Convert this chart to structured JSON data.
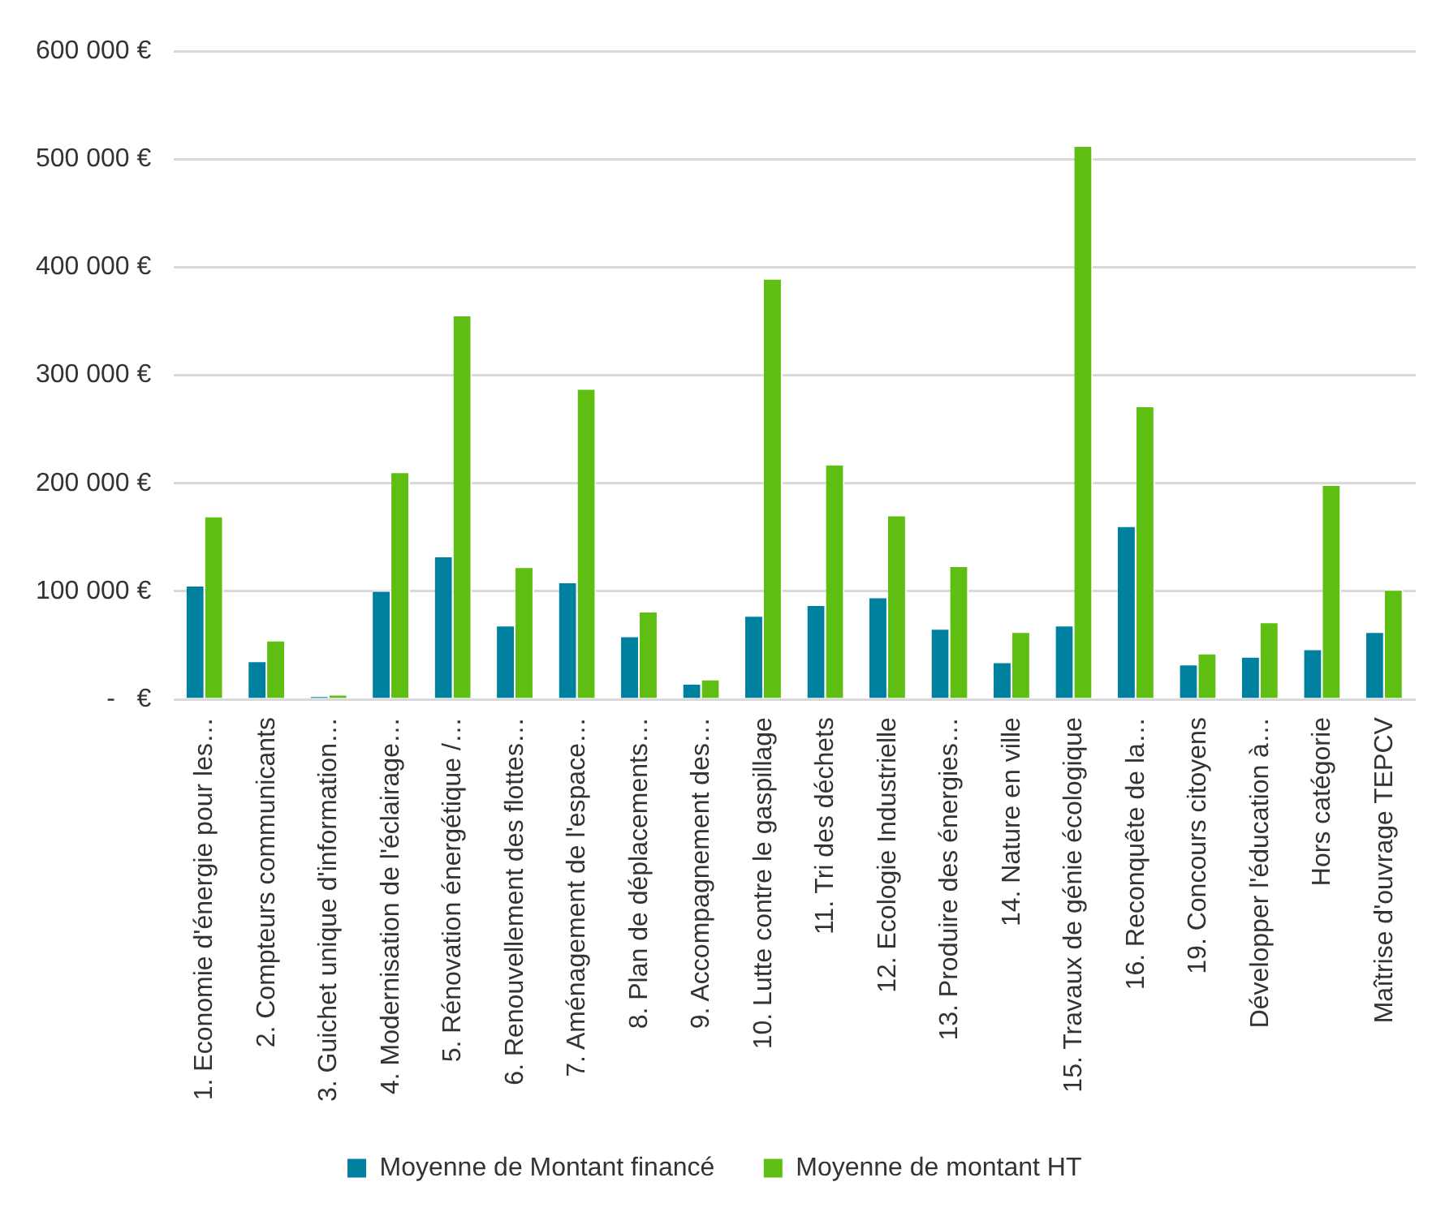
{
  "chart_data": {
    "type": "bar",
    "categories": [
      "1. Economie d'énergie pour les…",
      "2. Compteurs communicants",
      "3. Guichet unique d'information…",
      "4. Modernisation de l'éclairage…",
      "5. Rénovation énergétique /…",
      "6. Renouvellement des flottes…",
      "7. Aménagement de l'espace…",
      "8. Plan de déplacements…",
      "9. Accompagnement des…",
      "10. Lutte contre le gaspillage",
      "11. Tri des déchets",
      "12. Ecologie Industrielle",
      "13. Produire des énergies…",
      "14. Nature en ville",
      "15. Travaux de génie écologique",
      "16. Reconquête de la…",
      "19. Concours citoyens",
      "Développer l'éducation à…",
      "Hors catégorie",
      "Maîtrise d'ouvrage TEPCV"
    ],
    "series": [
      {
        "name": "Moyenne de Montant financé",
        "color": "#00809f",
        "values": [
          106000,
          36000,
          3000,
          101000,
          133000,
          69000,
          109000,
          59000,
          15000,
          78000,
          88000,
          95000,
          66000,
          35000,
          69000,
          161000,
          33000,
          40000,
          47000,
          63000
        ]
      },
      {
        "name": "Moyenne de montant HT",
        "color": "#5fbe12",
        "values": [
          170000,
          55000,
          5000,
          211000,
          356000,
          123000,
          288000,
          82000,
          19000,
          390000,
          218000,
          171000,
          124000,
          63000,
          513000,
          272000,
          43000,
          72000,
          199000,
          102000
        ]
      }
    ],
    "ylim": [
      0,
      600000
    ],
    "yticks": [
      {
        "value": 0,
        "label": "-   €"
      },
      {
        "value": 100000,
        "label": "100 000 €"
      },
      {
        "value": 200000,
        "label": "200 000 €"
      },
      {
        "value": 300000,
        "label": "300 000 €"
      },
      {
        "value": 400000,
        "label": "400 000 €"
      },
      {
        "value": 500000,
        "label": "500 000 €"
      },
      {
        "value": 600000,
        "label": "600 000 €"
      }
    ],
    "grid": "y",
    "legend": "bottom"
  }
}
